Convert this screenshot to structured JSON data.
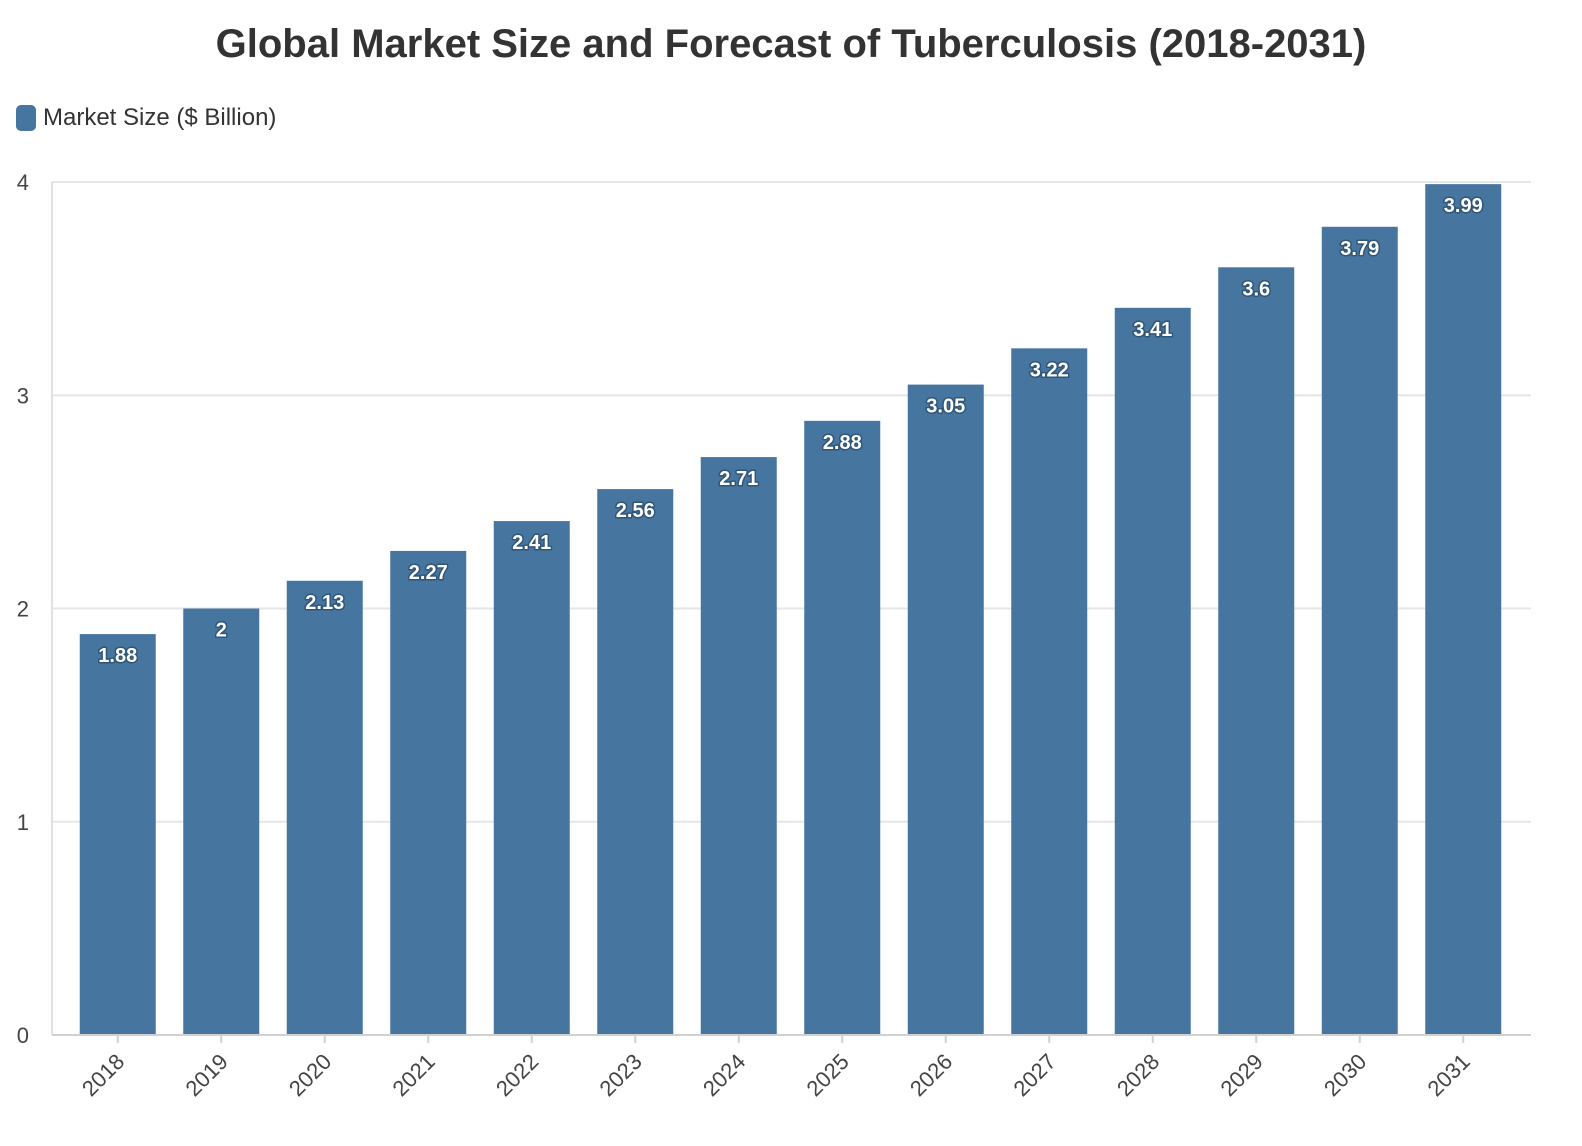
{
  "chart_data": {
    "type": "bar",
    "title": "Global Market Size and Forecast of Tuberculosis (2018-2031)",
    "xlabel": "",
    "ylabel": "",
    "categories": [
      "2018",
      "2019",
      "2020",
      "2021",
      "2022",
      "2023",
      "2024",
      "2025",
      "2026",
      "2027",
      "2028",
      "2029",
      "2030",
      "2031"
    ],
    "series": [
      {
        "name": "Market Size ($ Billion)",
        "color": "#4676a0",
        "values": [
          1.88,
          2,
          2.13,
          2.27,
          2.41,
          2.56,
          2.71,
          2.88,
          3.05,
          3.22,
          3.41,
          3.6,
          3.79,
          3.99
        ]
      }
    ],
    "ylim": [
      0,
      4
    ],
    "yticks": [
      "0",
      "1",
      "2",
      "3",
      "4"
    ],
    "grid": true,
    "legend_position": "top-left",
    "data_labels": true
  }
}
